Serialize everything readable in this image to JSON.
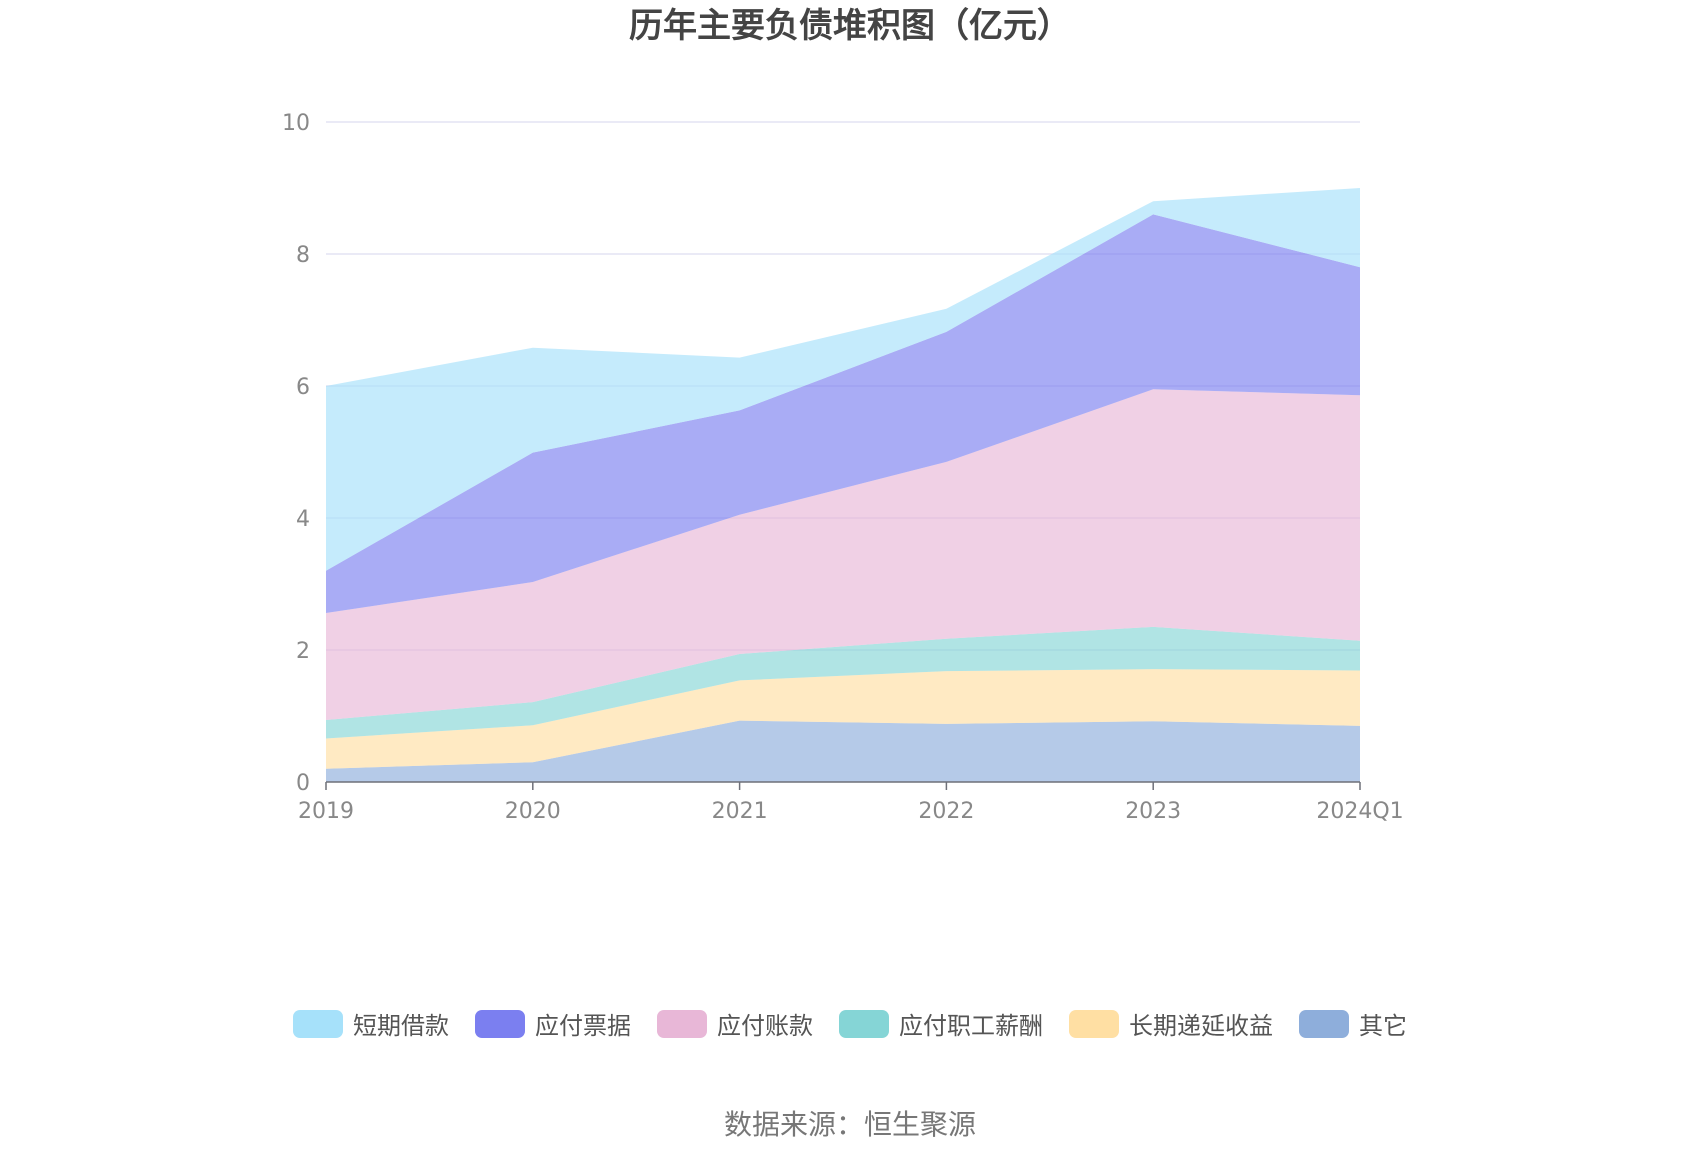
{
  "chart_data": {
    "type": "area",
    "stacked": true,
    "title": "历年主要负债堆积图（亿元）",
    "categories": [
      "2019",
      "2020",
      "2021",
      "2022",
      "2023",
      "2024Q1"
    ],
    "ylim": [
      0,
      10
    ],
    "yticks": [
      0,
      2,
      4,
      6,
      8,
      10
    ],
    "grid": true,
    "legend_position": "bottom",
    "series": [
      {
        "name": "其它",
        "color": "#8eaedb",
        "values": [
          0.2,
          0.3,
          0.93,
          0.88,
          0.92,
          0.85
        ]
      },
      {
        "name": "长期递延收益",
        "color": "#ffdfa3",
        "values": [
          0.46,
          0.56,
          0.61,
          0.8,
          0.79,
          0.84
        ]
      },
      {
        "name": "应付职工薪酬",
        "color": "#85d5d6",
        "values": [
          0.28,
          0.35,
          0.4,
          0.49,
          0.64,
          0.45
        ]
      },
      {
        "name": "应付账款",
        "color": "#e8b7d7",
        "values": [
          1.62,
          1.82,
          2.11,
          2.68,
          3.6,
          3.72
        ]
      },
      {
        "name": "应付票据",
        "color": "#7b7ff0",
        "values": [
          0.64,
          1.96,
          1.58,
          1.97,
          2.65,
          1.94
        ]
      },
      {
        "name": "短期借款",
        "color": "#a6e1fa",
        "values": [
          2.8,
          1.59,
          0.8,
          0.35,
          0.2,
          1.2
        ]
      }
    ],
    "legend_order": [
      "短期借款",
      "应付票据",
      "应付账款",
      "应付职工薪酬",
      "长期递延收益",
      "其它"
    ],
    "source": "数据来源：恒生聚源"
  }
}
